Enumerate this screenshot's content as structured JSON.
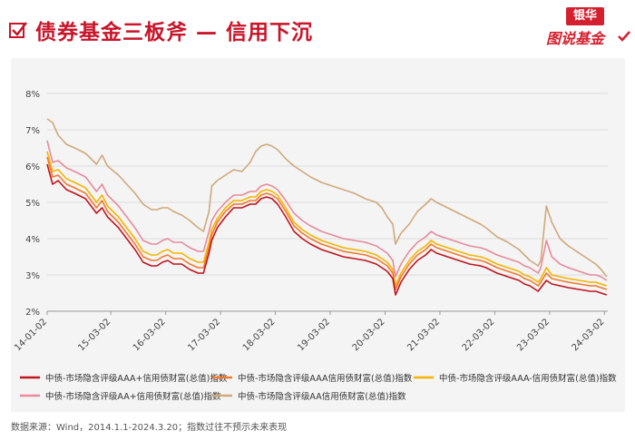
{
  "header": {
    "title": "债券基金三板斧 — 信用下沉",
    "brand_top": "银华",
    "brand_bottom": "图说基金"
  },
  "source_note": "数据来源：Wind，2014.1.1-2024.3.20；指数过往不预示未来表现",
  "chart_data": {
    "type": "line",
    "title": "",
    "xlabel": "",
    "ylabel": "",
    "ylim": [
      2,
      8
    ],
    "ytick_labels": [
      "2%",
      "3%",
      "4%",
      "5%",
      "6%",
      "7%",
      "8%"
    ],
    "yticks": [
      2,
      3,
      4,
      5,
      6,
      7,
      8
    ],
    "xtick_labels": [
      "14-01-02",
      "15-03-02",
      "16-03-02",
      "17-03-02",
      "18-03-02",
      "19-03-02",
      "20-03-02",
      "21-03-02",
      "22-03-02",
      "23-03-02",
      "24-03-02"
    ],
    "xticks": [
      2014.0,
      2015.16,
      2016.16,
      2017.16,
      2018.16,
      2019.16,
      2020.16,
      2021.16,
      2022.16,
      2023.16,
      2024.16
    ],
    "xlim": [
      2014.0,
      2024.22
    ],
    "grid": "horizontal",
    "legend_position": "bottom",
    "x": [
      2014.0,
      2014.1,
      2014.2,
      2014.35,
      2014.5,
      2014.7,
      2014.9,
      2015.0,
      2015.1,
      2015.3,
      2015.45,
      2015.6,
      2015.75,
      2015.9,
      2016.0,
      2016.1,
      2016.2,
      2016.3,
      2016.45,
      2016.6,
      2016.75,
      2016.85,
      2016.95,
      2017.0,
      2017.1,
      2017.25,
      2017.4,
      2017.55,
      2017.7,
      2017.8,
      2017.9,
      2018.0,
      2018.1,
      2018.2,
      2018.35,
      2018.5,
      2018.65,
      2018.8,
      2019.0,
      2019.2,
      2019.4,
      2019.6,
      2019.8,
      2020.0,
      2020.1,
      2020.2,
      2020.3,
      2020.35,
      2020.45,
      2020.6,
      2020.75,
      2020.9,
      2021.0,
      2021.1,
      2021.3,
      2021.5,
      2021.7,
      2021.9,
      2022.0,
      2022.2,
      2022.4,
      2022.6,
      2022.7,
      2022.8,
      2022.9,
      2022.95,
      2023.0,
      2023.1,
      2023.2,
      2023.35,
      2023.5,
      2023.7,
      2023.9,
      2024.0,
      2024.1,
      2024.2
    ],
    "series": [
      {
        "name": "中债-市场隐含评级AAA+信用债财富(总值)指数",
        "color": "#c0151f",
        "values": [
          6.05,
          5.5,
          5.6,
          5.35,
          5.25,
          5.1,
          4.7,
          4.85,
          4.6,
          4.3,
          4.0,
          3.7,
          3.35,
          3.25,
          3.25,
          3.35,
          3.4,
          3.3,
          3.3,
          3.15,
          3.05,
          3.05,
          3.6,
          3.95,
          4.3,
          4.6,
          4.85,
          4.85,
          4.95,
          4.95,
          5.1,
          5.15,
          5.1,
          4.95,
          4.6,
          4.2,
          4.0,
          3.85,
          3.7,
          3.6,
          3.5,
          3.45,
          3.4,
          3.3,
          3.2,
          3.1,
          2.9,
          2.45,
          2.8,
          3.15,
          3.4,
          3.55,
          3.7,
          3.6,
          3.5,
          3.4,
          3.3,
          3.25,
          3.2,
          3.05,
          2.95,
          2.85,
          2.75,
          2.7,
          2.6,
          2.55,
          2.65,
          2.85,
          2.75,
          2.7,
          2.65,
          2.6,
          2.55,
          2.55,
          2.5,
          2.45
        ]
      },
      {
        "name": "中债-市场隐含评级AAA信用债财富(总值)指数",
        "color": "#f07a2c",
        "values": [
          6.25,
          5.7,
          5.75,
          5.5,
          5.4,
          5.25,
          4.85,
          5.05,
          4.75,
          4.45,
          4.15,
          3.85,
          3.5,
          3.4,
          3.4,
          3.5,
          3.55,
          3.45,
          3.45,
          3.3,
          3.2,
          3.2,
          3.75,
          4.1,
          4.45,
          4.75,
          4.95,
          4.95,
          5.05,
          5.05,
          5.2,
          5.25,
          5.2,
          5.1,
          4.75,
          4.35,
          4.15,
          4.0,
          3.85,
          3.75,
          3.65,
          3.6,
          3.55,
          3.45,
          3.35,
          3.25,
          3.05,
          2.6,
          2.95,
          3.3,
          3.55,
          3.7,
          3.85,
          3.75,
          3.65,
          3.55,
          3.45,
          3.4,
          3.35,
          3.2,
          3.1,
          3.0,
          2.9,
          2.85,
          2.75,
          2.7,
          2.8,
          3.05,
          2.9,
          2.85,
          2.8,
          2.75,
          2.7,
          2.7,
          2.65,
          2.6
        ]
      },
      {
        "name": "中债-市场隐含评级AAA-信用债财富(总值)指数",
        "color": "#f5b400",
        "values": [
          6.4,
          5.85,
          5.9,
          5.65,
          5.55,
          5.4,
          5.0,
          5.2,
          4.9,
          4.6,
          4.3,
          4.0,
          3.65,
          3.55,
          3.55,
          3.65,
          3.7,
          3.6,
          3.6,
          3.45,
          3.35,
          3.35,
          3.9,
          4.25,
          4.55,
          4.85,
          5.05,
          5.05,
          5.15,
          5.15,
          5.3,
          5.35,
          5.3,
          5.2,
          4.85,
          4.45,
          4.25,
          4.1,
          3.95,
          3.85,
          3.75,
          3.7,
          3.65,
          3.55,
          3.45,
          3.35,
          3.15,
          2.7,
          3.05,
          3.4,
          3.65,
          3.8,
          3.95,
          3.85,
          3.75,
          3.65,
          3.55,
          3.5,
          3.45,
          3.3,
          3.2,
          3.1,
          3.0,
          2.95,
          2.85,
          2.8,
          2.9,
          3.2,
          3.0,
          2.95,
          2.9,
          2.85,
          2.8,
          2.8,
          2.75,
          2.7
        ]
      },
      {
        "name": "中债-市场隐含评级AA+信用债财富(总值)指数",
        "color": "#e88a9c",
        "values": [
          6.7,
          6.1,
          6.15,
          5.95,
          5.85,
          5.7,
          5.3,
          5.5,
          5.2,
          4.9,
          4.6,
          4.3,
          3.95,
          3.85,
          3.85,
          3.95,
          4.0,
          3.9,
          3.9,
          3.75,
          3.65,
          3.65,
          4.2,
          4.5,
          4.75,
          5.0,
          5.2,
          5.2,
          5.3,
          5.3,
          5.45,
          5.5,
          5.45,
          5.35,
          5.05,
          4.7,
          4.5,
          4.35,
          4.2,
          4.1,
          4.0,
          3.95,
          3.9,
          3.8,
          3.7,
          3.6,
          3.4,
          2.95,
          3.3,
          3.65,
          3.9,
          4.05,
          4.2,
          4.1,
          4.0,
          3.9,
          3.8,
          3.75,
          3.7,
          3.55,
          3.45,
          3.35,
          3.25,
          3.2,
          3.1,
          3.05,
          3.2,
          3.95,
          3.5,
          3.3,
          3.2,
          3.1,
          3.0,
          3.0,
          2.95,
          2.85
        ]
      },
      {
        "name": "中债-市场隐含评级AA信用债财富(总值)指数",
        "color": "#cfa97c",
        "values": [
          7.3,
          7.2,
          6.85,
          6.6,
          6.5,
          6.35,
          6.05,
          6.3,
          6.0,
          5.75,
          5.5,
          5.25,
          4.95,
          4.8,
          4.8,
          4.85,
          4.85,
          4.75,
          4.65,
          4.5,
          4.3,
          4.2,
          4.75,
          5.45,
          5.6,
          5.75,
          5.9,
          5.85,
          6.1,
          6.4,
          6.55,
          6.6,
          6.55,
          6.45,
          6.2,
          6.0,
          5.85,
          5.7,
          5.55,
          5.45,
          5.35,
          5.25,
          5.1,
          5.0,
          4.85,
          4.6,
          4.4,
          3.85,
          4.15,
          4.4,
          4.75,
          4.95,
          5.1,
          5.0,
          4.85,
          4.7,
          4.55,
          4.4,
          4.3,
          4.05,
          3.9,
          3.7,
          3.55,
          3.4,
          3.3,
          3.25,
          3.4,
          4.9,
          4.45,
          4.0,
          3.8,
          3.6,
          3.4,
          3.3,
          3.15,
          2.95
        ]
      }
    ]
  }
}
